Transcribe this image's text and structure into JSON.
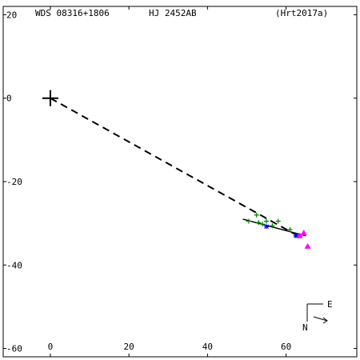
{
  "chart_data": {
    "type": "scatter",
    "title_left": "WDS 08316+1806",
    "title_center": "HJ 2452AB",
    "title_right": "(Hrt2017a)",
    "xlim": [
      -12,
      78
    ],
    "ylim": [
      -62,
      22
    ],
    "x_ticks": [
      0,
      20,
      40,
      60
    ],
    "y_ticks": [
      20,
      0,
      -20,
      -40,
      -60
    ],
    "primary": {
      "x": 0,
      "y": 0
    },
    "dashed_line": [
      [
        0,
        0
      ],
      [
        63,
        -33
      ]
    ],
    "orbit_segment": [
      [
        49,
        -29
      ],
      [
        65,
        -33
      ]
    ],
    "series": [
      {
        "marker": "plus",
        "color": "#008000",
        "points": [
          [
            50.5,
            -29.5
          ],
          [
            52.5,
            -28
          ],
          [
            53,
            -29.8
          ],
          [
            54,
            -30.2
          ],
          [
            55,
            -29.5
          ],
          [
            56.5,
            -30.6
          ],
          [
            58,
            -29.5
          ],
          [
            61,
            -31.5
          ],
          [
            62.5,
            -33
          ]
        ]
      },
      {
        "marker": "asterisk",
        "color": "#0000ff",
        "points": [
          [
            55,
            -30.8
          ],
          [
            62.5,
            -33
          ]
        ]
      },
      {
        "marker": "triangle",
        "color": "#ff00ff",
        "points": [
          [
            64.5,
            -32.3
          ],
          [
            63.5,
            -33
          ],
          [
            65.5,
            -35.5
          ]
        ]
      }
    ],
    "compass": {
      "east": "E",
      "north": "N"
    }
  }
}
